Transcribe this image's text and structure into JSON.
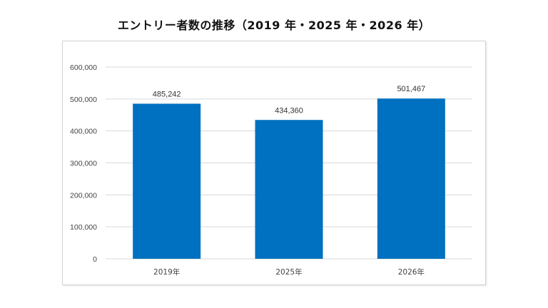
{
  "chart_data": {
    "type": "bar",
    "title": "エントリー者数の推移（2019 年・2025 年・2026 年）",
    "xlabel": "",
    "ylabel": "",
    "categories": [
      "2019年",
      "2025年",
      "2026年"
    ],
    "values": [
      485242,
      434360,
      501467
    ],
    "data_labels": [
      "485,242",
      "434,360",
      "501,467"
    ],
    "ylim": [
      0,
      600000
    ],
    "yticks": [
      0,
      100000,
      200000,
      300000,
      400000,
      500000,
      600000
    ],
    "ytick_labels": [
      "0",
      "100,000",
      "200,000",
      "300,000",
      "400,000",
      "500,000",
      "600,000"
    ],
    "grid": true,
    "legend": "none",
    "bar_color": "#0070C0",
    "grid_color": "#d9d9d9"
  }
}
